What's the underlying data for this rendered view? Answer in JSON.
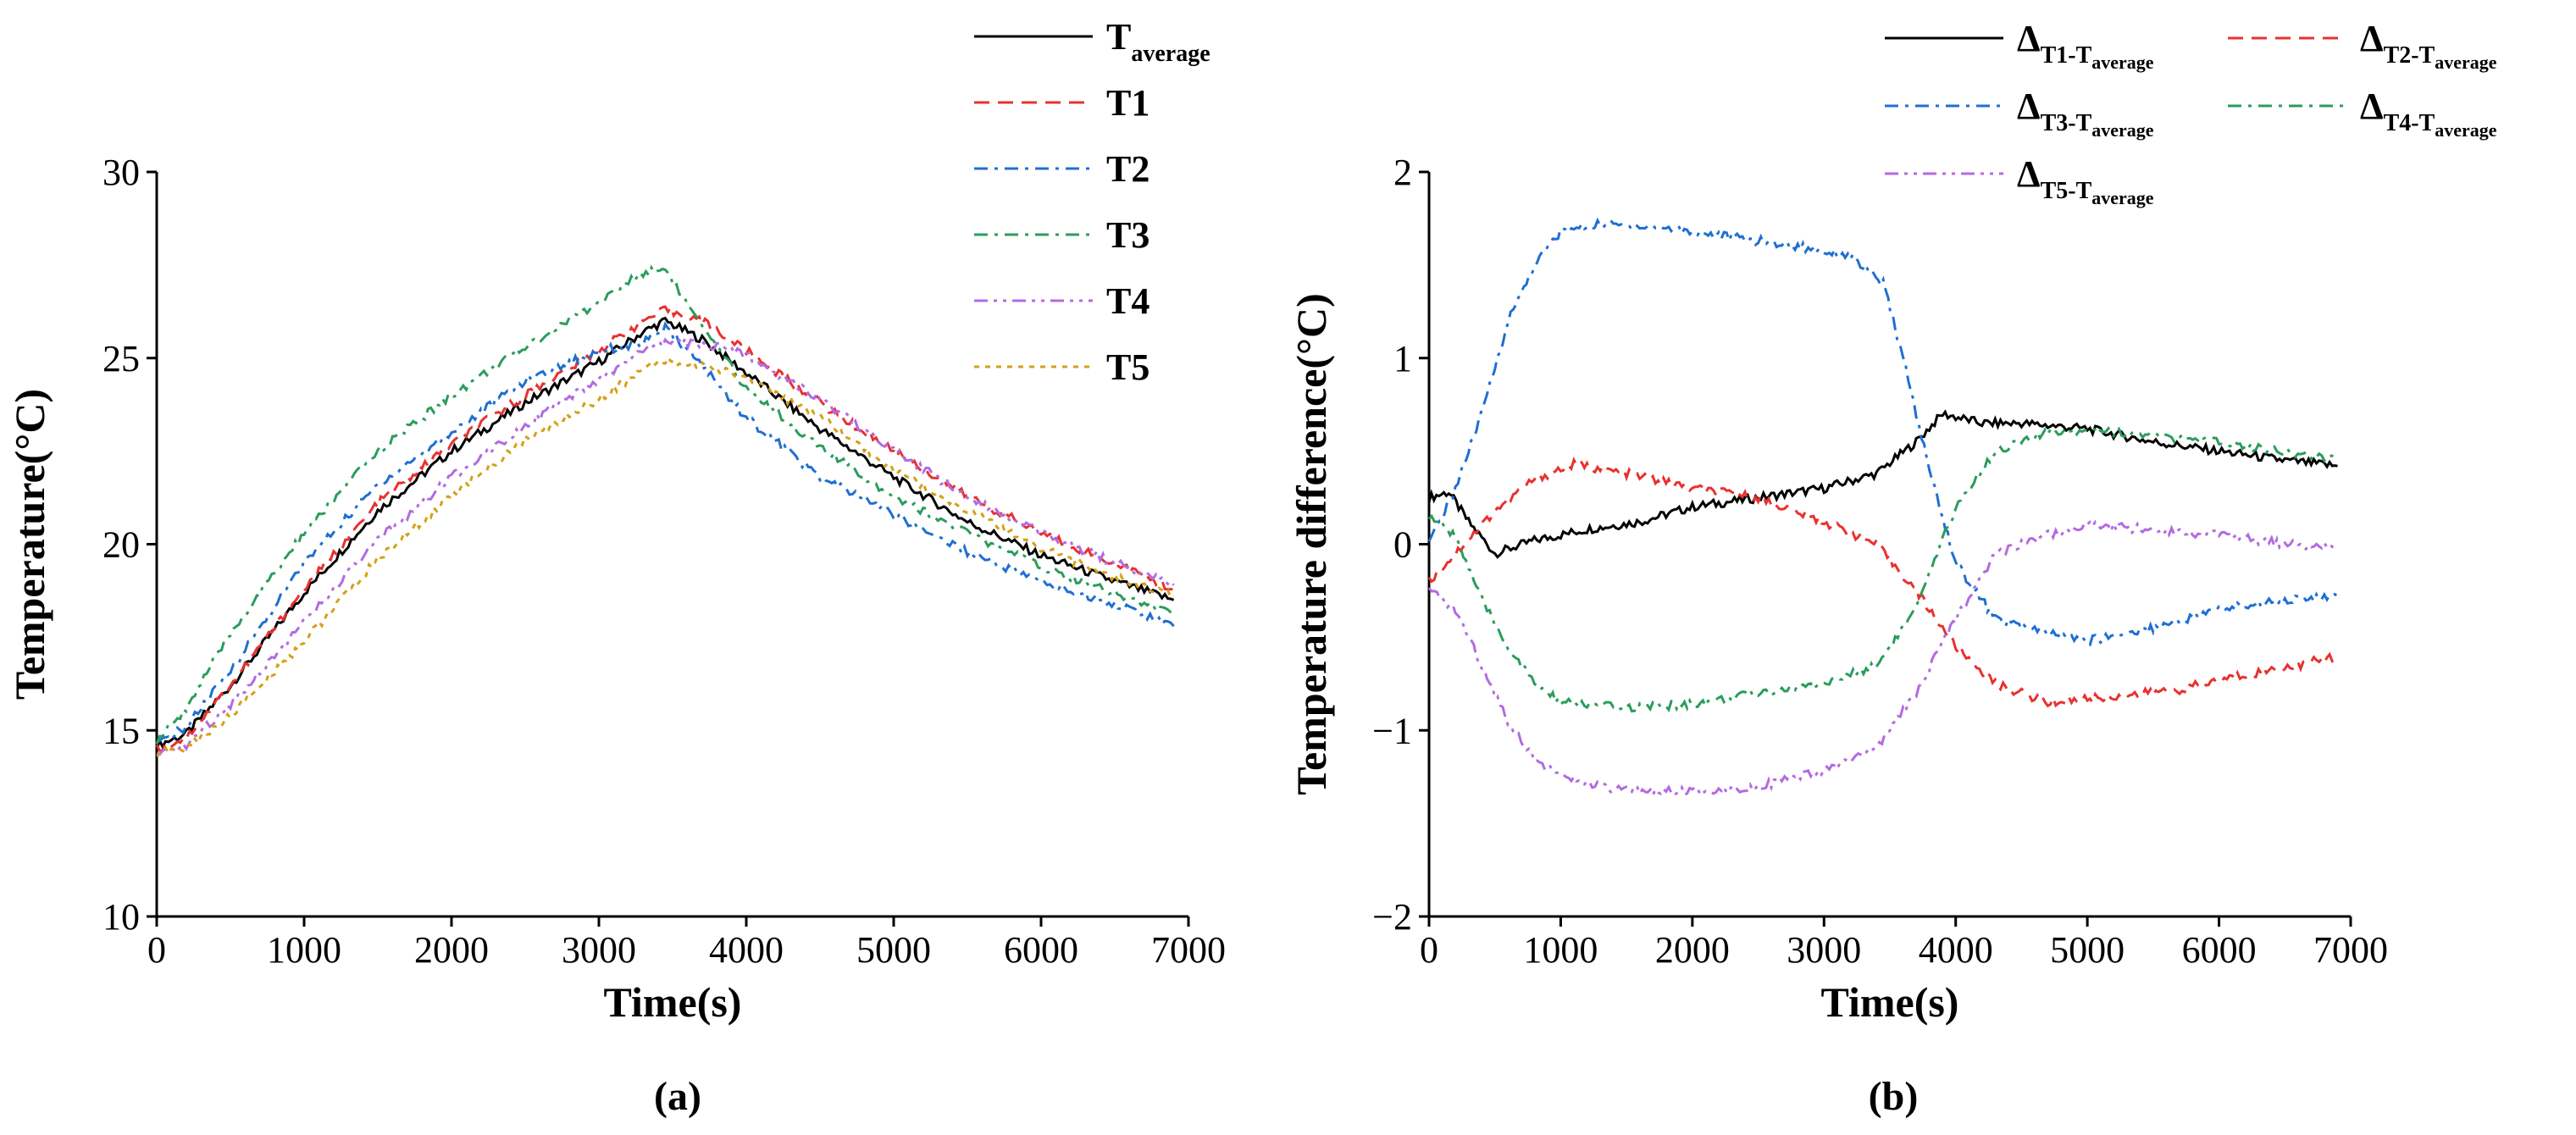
{
  "chart_data": [
    {
      "panel": "(a)",
      "type": "line",
      "xlabel": "Time(s)",
      "ylabel": "Temperature(°C)",
      "xlim": [
        0,
        7000
      ],
      "ylim": [
        10,
        30
      ],
      "xticks": [
        0,
        1000,
        2000,
        3000,
        4000,
        5000,
        6000,
        7000
      ],
      "yticks": [
        10,
        15,
        20,
        25,
        30
      ],
      "legend_position": "top-right, outside plot",
      "series": [
        {
          "name": "T",
          "sub": "average",
          "color": "#000000",
          "dash": "solid",
          "points": [
            [
              0,
              14.6
            ],
            [
              200,
              14.9
            ],
            [
              500,
              16.2
            ],
            [
              1000,
              18.7
            ],
            [
              1500,
              20.9
            ],
            [
              2000,
              22.5
            ],
            [
              2500,
              23.8
            ],
            [
              3000,
              24.9
            ],
            [
              3300,
              25.7
            ],
            [
              3450,
              26.0
            ],
            [
              3700,
              25.5
            ],
            [
              4000,
              24.6
            ],
            [
              4500,
              23.1
            ],
            [
              5000,
              21.8
            ],
            [
              5500,
              20.6
            ],
            [
              6000,
              19.7
            ],
            [
              6500,
              19.0
            ],
            [
              6900,
              18.5
            ]
          ]
        },
        {
          "name": "T1",
          "sub": "",
          "color": "#e8312f",
          "dash": "dashed",
          "points": [
            [
              0,
              14.5
            ],
            [
              200,
              14.8
            ],
            [
              500,
              16.2
            ],
            [
              1000,
              18.8
            ],
            [
              1500,
              21.1
            ],
            [
              2000,
              22.7
            ],
            [
              2500,
              24.0
            ],
            [
              3000,
              25.2
            ],
            [
              3300,
              26.0
            ],
            [
              3450,
              26.3
            ],
            [
              3700,
              26.0
            ],
            [
              4000,
              25.2
            ],
            [
              4500,
              23.8
            ],
            [
              5000,
              22.5
            ],
            [
              5500,
              21.3
            ],
            [
              6000,
              20.3
            ],
            [
              6500,
              19.5
            ],
            [
              6900,
              18.8
            ]
          ]
        },
        {
          "name": "T2",
          "sub": "",
          "color": "#1f6fd1",
          "dash": "dashdot",
          "points": [
            [
              0,
              14.6
            ],
            [
              200,
              15.1
            ],
            [
              500,
              16.6
            ],
            [
              1000,
              19.5
            ],
            [
              1500,
              21.6
            ],
            [
              2000,
              23.0
            ],
            [
              2500,
              24.4
            ],
            [
              3000,
              25.2
            ],
            [
              3300,
              25.4
            ],
            [
              3450,
              25.8
            ],
            [
              3700,
              24.8
            ],
            [
              4000,
              23.4
            ],
            [
              4500,
              21.8
            ],
            [
              5000,
              20.8
            ],
            [
              5500,
              19.8
            ],
            [
              6000,
              19.0
            ],
            [
              6500,
              18.4
            ],
            [
              6900,
              17.8
            ]
          ]
        },
        {
          "name": "T3",
          "sub": "",
          "color": "#2a9d5c",
          "dash": "dashdot",
          "points": [
            [
              0,
              14.7
            ],
            [
              200,
              15.6
            ],
            [
              500,
              17.6
            ],
            [
              1000,
              20.3
            ],
            [
              1500,
              22.5
            ],
            [
              2000,
              24.0
            ],
            [
              2500,
              25.3
            ],
            [
              3000,
              26.5
            ],
            [
              3300,
              27.3
            ],
            [
              3450,
              27.4
            ],
            [
              3700,
              25.8
            ],
            [
              4000,
              24.2
            ],
            [
              4500,
              22.6
            ],
            [
              5000,
              21.3
            ],
            [
              5500,
              20.3
            ],
            [
              6000,
              19.4
            ],
            [
              6500,
              18.7
            ],
            [
              6900,
              18.1
            ]
          ]
        },
        {
          "name": "T4",
          "sub": "",
          "color": "#b36be0",
          "dash": "dashdotdot",
          "points": [
            [
              0,
              14.3
            ],
            [
              200,
              14.6
            ],
            [
              500,
              15.7
            ],
            [
              1000,
              17.9
            ],
            [
              1500,
              20.1
            ],
            [
              2000,
              21.8
            ],
            [
              2500,
              23.2
            ],
            [
              3000,
              24.4
            ],
            [
              3300,
              25.2
            ],
            [
              3450,
              25.4
            ],
            [
              3700,
              25.4
            ],
            [
              4000,
              25.1
            ],
            [
              4500,
              23.9
            ],
            [
              5000,
              22.5
            ],
            [
              5500,
              21.3
            ],
            [
              6000,
              20.3
            ],
            [
              6500,
              19.5
            ],
            [
              6900,
              18.9
            ]
          ]
        },
        {
          "name": "T5",
          "sub": "",
          "color": "#d4a017",
          "dash": "dotted",
          "points": [
            [
              0,
              14.4
            ],
            [
              200,
              14.5
            ],
            [
              500,
              15.4
            ],
            [
              1000,
              17.4
            ],
            [
              1500,
              19.6
            ],
            [
              2000,
              21.3
            ],
            [
              2500,
              22.8
            ],
            [
              3000,
              23.9
            ],
            [
              3300,
              24.7
            ],
            [
              3450,
              24.9
            ],
            [
              3700,
              24.8
            ],
            [
              4000,
              24.5
            ],
            [
              4500,
              23.4
            ],
            [
              5000,
              22.0
            ],
            [
              5500,
              20.9
            ],
            [
              6000,
              19.9
            ],
            [
              6500,
              19.1
            ],
            [
              6900,
              18.6
            ]
          ]
        }
      ]
    },
    {
      "panel": "(b)",
      "type": "line",
      "xlabel": "Time(s)",
      "ylabel": "Temperature difference(°C)",
      "xlim": [
        0,
        7000
      ],
      "ylim": [
        -2,
        2
      ],
      "xticks": [
        0,
        1000,
        2000,
        3000,
        4000,
        5000,
        6000,
        7000
      ],
      "yticks": [
        -2,
        -1,
        0,
        1,
        2
      ],
      "legend_position": "top, outside plot, two columns",
      "series": [
        {
          "name": "Δ",
          "sub": "T1-T",
          "subsub": "average",
          "color": "#000000",
          "dash": "solid",
          "points": [
            [
              0,
              0.25
            ],
            [
              150,
              0.28
            ],
            [
              300,
              0.12
            ],
            [
              500,
              -0.05
            ],
            [
              800,
              0.02
            ],
            [
              1200,
              0.08
            ],
            [
              1600,
              0.12
            ],
            [
              2000,
              0.2
            ],
            [
              2500,
              0.25
            ],
            [
              3000,
              0.3
            ],
            [
              3400,
              0.38
            ],
            [
              3700,
              0.55
            ],
            [
              3900,
              0.7
            ],
            [
              4200,
              0.65
            ],
            [
              4500,
              0.65
            ],
            [
              5000,
              0.62
            ],
            [
              5500,
              0.55
            ],
            [
              6000,
              0.5
            ],
            [
              6500,
              0.45
            ],
            [
              6900,
              0.42
            ]
          ]
        },
        {
          "name": "Δ",
          "sub": "T2-T",
          "subsub": "average",
          "color": "#e8312f",
          "dash": "dashed",
          "points": [
            [
              0,
              -0.2
            ],
            [
              200,
              -0.05
            ],
            [
              500,
              0.18
            ],
            [
              800,
              0.35
            ],
            [
              1100,
              0.43
            ],
            [
              1500,
              0.38
            ],
            [
              2000,
              0.3
            ],
            [
              2500,
              0.25
            ],
            [
              3000,
              0.12
            ],
            [
              3400,
              0.0
            ],
            [
              3700,
              -0.25
            ],
            [
              4000,
              -0.55
            ],
            [
              4300,
              -0.75
            ],
            [
              4700,
              -0.85
            ],
            [
              5200,
              -0.82
            ],
            [
              5700,
              -0.78
            ],
            [
              6200,
              -0.7
            ],
            [
              6600,
              -0.65
            ],
            [
              6900,
              -0.6
            ]
          ]
        },
        {
          "name": "Δ",
          "sub": "T3-T",
          "subsub": "average",
          "color": "#1f6fd1",
          "dash": "dashdot",
          "points": [
            [
              0,
              0.0
            ],
            [
              200,
              0.3
            ],
            [
              400,
              0.7
            ],
            [
              600,
              1.2
            ],
            [
              800,
              1.5
            ],
            [
              1000,
              1.68
            ],
            [
              1300,
              1.72
            ],
            [
              1800,
              1.7
            ],
            [
              2300,
              1.65
            ],
            [
              2800,
              1.6
            ],
            [
              3200,
              1.55
            ],
            [
              3450,
              1.4
            ],
            [
              3600,
              1.0
            ],
            [
              3800,
              0.4
            ],
            [
              4000,
              -0.1
            ],
            [
              4300,
              -0.4
            ],
            [
              4700,
              -0.48
            ],
            [
              5000,
              -0.52
            ],
            [
              5500,
              -0.45
            ],
            [
              6000,
              -0.35
            ],
            [
              6500,
              -0.3
            ],
            [
              6900,
              -0.28
            ]
          ]
        },
        {
          "name": "Δ",
          "sub": "T4-T",
          "subsub": "average",
          "color": "#2a9d5c",
          "dash": "dashdot",
          "points": [
            [
              0,
              0.15
            ],
            [
              200,
              0.05
            ],
            [
              400,
              -0.3
            ],
            [
              600,
              -0.55
            ],
            [
              800,
              -0.75
            ],
            [
              1000,
              -0.85
            ],
            [
              1500,
              -0.88
            ],
            [
              2000,
              -0.86
            ],
            [
              2500,
              -0.8
            ],
            [
              3000,
              -0.75
            ],
            [
              3400,
              -0.65
            ],
            [
              3700,
              -0.35
            ],
            [
              4000,
              0.2
            ],
            [
              4300,
              0.5
            ],
            [
              4700,
              0.6
            ],
            [
              5000,
              0.62
            ],
            [
              5500,
              0.58
            ],
            [
              6000,
              0.55
            ],
            [
              6500,
              0.5
            ],
            [
              6900,
              0.45
            ]
          ]
        },
        {
          "name": "Δ",
          "sub": "T5-T",
          "subsub": "average",
          "color": "#b36be0",
          "dash": "dashdotdot",
          "points": [
            [
              0,
              -0.25
            ],
            [
              200,
              -0.35
            ],
            [
              400,
              -0.65
            ],
            [
              600,
              -0.95
            ],
            [
              800,
              -1.15
            ],
            [
              1000,
              -1.25
            ],
            [
              1400,
              -1.32
            ],
            [
              2000,
              -1.33
            ],
            [
              2500,
              -1.3
            ],
            [
              3000,
              -1.22
            ],
            [
              3400,
              -1.1
            ],
            [
              3700,
              -0.8
            ],
            [
              4000,
              -0.4
            ],
            [
              4300,
              -0.05
            ],
            [
              4700,
              0.05
            ],
            [
              5000,
              0.1
            ],
            [
              5500,
              0.08
            ],
            [
              6000,
              0.05
            ],
            [
              6500,
              0.0
            ],
            [
              6900,
              -0.02
            ]
          ]
        }
      ]
    }
  ],
  "captions": {
    "a": "(a)",
    "b": "(b)"
  }
}
